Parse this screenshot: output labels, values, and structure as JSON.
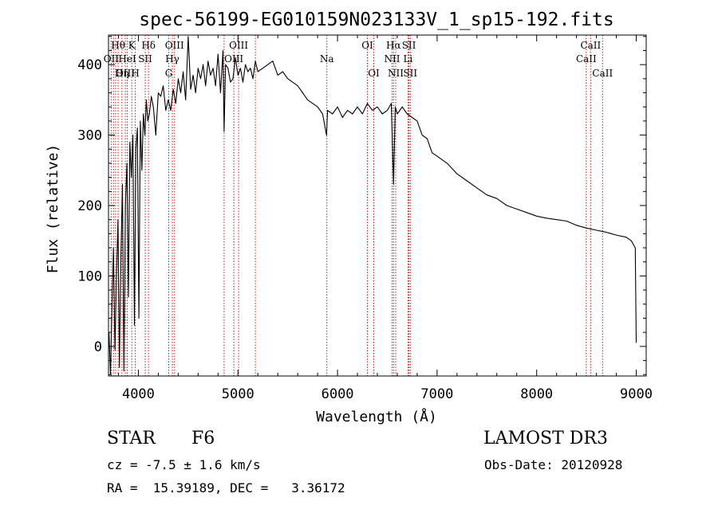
{
  "chart_data": {
    "type": "line",
    "title": "spec-56199-EG010159N023133V_1_sp15-192.fits",
    "xlabel": "Wavelength (Å)",
    "ylabel": "Flux (relative)",
    "xlim": [
      3700,
      9100
    ],
    "ylim": [
      -42,
      442
    ],
    "x_ticks": [
      4000,
      5000,
      6000,
      7000,
      8000,
      9000
    ],
    "y_ticks": [
      0,
      100,
      200,
      300,
      400
    ],
    "grid": false,
    "series": [
      {
        "name": "spectrum",
        "x": [
          3705,
          3720,
          3735,
          3750,
          3765,
          3780,
          3795,
          3810,
          3825,
          3840,
          3855,
          3870,
          3885,
          3900,
          3915,
          3930,
          3945,
          3960,
          3975,
          3990,
          4005,
          4020,
          4035,
          4050,
          4065,
          4080,
          4095,
          4110,
          4130,
          4150,
          4175,
          4200,
          4225,
          4250,
          4275,
          4300,
          4325,
          4350,
          4375,
          4400,
          4425,
          4450,
          4475,
          4500,
          4525,
          4550,
          4575,
          4600,
          4625,
          4650,
          4675,
          4700,
          4725,
          4750,
          4775,
          4800,
          4825,
          4850,
          4861,
          4875,
          4900,
          4925,
          4950,
          4975,
          5000,
          5025,
          5050,
          5075,
          5100,
          5125,
          5150,
          5175,
          5200,
          5250,
          5300,
          5350,
          5400,
          5450,
          5500,
          5550,
          5600,
          5650,
          5700,
          5750,
          5800,
          5850,
          5890,
          5900,
          5950,
          6000,
          6050,
          6100,
          6150,
          6200,
          6250,
          6300,
          6350,
          6400,
          6450,
          6500,
          6540,
          6563,
          6580,
          6600,
          6650,
          6700,
          6750,
          6800,
          6850,
          6900,
          6950,
          7000,
          7100,
          7200,
          7300,
          7400,
          7500,
          7600,
          7700,
          7800,
          7900,
          8000,
          8100,
          8200,
          8300,
          8400,
          8500,
          8600,
          8700,
          8800,
          8900,
          8950,
          8990,
          9000
        ],
        "values": [
          20,
          -40,
          60,
          140,
          -5,
          100,
          180,
          -30,
          130,
          230,
          -35,
          200,
          260,
          70,
          290,
          240,
          300,
          30,
          280,
          310,
          40,
          320,
          250,
          330,
          300,
          350,
          320,
          330,
          355,
          340,
          300,
          360,
          355,
          370,
          335,
          350,
          335,
          365,
          345,
          380,
          360,
          390,
          350,
          440,
          365,
          385,
          360,
          395,
          380,
          400,
          370,
          405,
          385,
          395,
          370,
          415,
          360,
          420,
          305,
          400,
          395,
          375,
          380,
          410,
          385,
          395,
          375,
          400,
          390,
          395,
          380,
          405,
          390,
          395,
          400,
          405,
          385,
          390,
          380,
          375,
          370,
          360,
          350,
          345,
          340,
          330,
          300,
          335,
          330,
          340,
          325,
          335,
          330,
          340,
          330,
          345,
          335,
          340,
          330,
          335,
          345,
          230,
          340,
          330,
          340,
          330,
          325,
          320,
          300,
          295,
          275,
          270,
          260,
          245,
          235,
          225,
          215,
          210,
          200,
          195,
          190,
          185,
          182,
          180,
          178,
          172,
          168,
          165,
          162,
          158,
          155,
          150,
          140,
          5
        ]
      }
    ],
    "annotations": [
      {
        "label": "Hθ",
        "x": 3797,
        "row": 1
      },
      {
        "label": "OII",
        "x": 3727,
        "row": 2
      },
      {
        "label": "OIII",
        "x": 3869,
        "row": 3
      },
      {
        "label": "K",
        "x": 3934,
        "row": 1
      },
      {
        "label": "HeI",
        "x": 3889,
        "row": 2
      },
      {
        "label": "Hη",
        "x": 3835,
        "row": 3
      },
      {
        "label": "SII",
        "x": 4069,
        "row": 2
      },
      {
        "label": "H",
        "x": 3969,
        "row": 3
      },
      {
        "label": "Hδ",
        "x": 4102,
        "row": 1
      },
      {
        "label": "OIII",
        "x": 4363,
        "row": 1
      },
      {
        "label": "Hγ",
        "x": 4341,
        "row": 2
      },
      {
        "label": "G",
        "x": 4305,
        "row": 3
      },
      {
        "label": "OIII",
        "x": 5007,
        "row": 1
      },
      {
        "label": "OIII",
        "x": 4959,
        "row": 2
      },
      {
        "label": "Na",
        "x": 5893,
        "row": 2
      },
      {
        "label": "OI",
        "x": 6300,
        "row": 1
      },
      {
        "label": "OI",
        "x": 6364,
        "row": 3
      },
      {
        "label": "Hα",
        "x": 6563,
        "row": 1
      },
      {
        "label": "SII",
        "x": 6717,
        "row": 1
      },
      {
        "label": "NII",
        "x": 6548,
        "row": 2
      },
      {
        "label": "Li",
        "x": 6708,
        "row": 2
      },
      {
        "label": "NII",
        "x": 6584,
        "row": 3
      },
      {
        "label": "SII",
        "x": 6731,
        "row": 3
      },
      {
        "label": "CaII",
        "x": 8542,
        "row": 1
      },
      {
        "label": "CaII",
        "x": 8498,
        "row": 2
      },
      {
        "label": "CaII",
        "x": 8662,
        "row": 3
      }
    ],
    "line_markers": [
      3727,
      3750,
      3771,
      3797,
      3835,
      3869,
      3889,
      3934,
      3969,
      4069,
      4102,
      4305,
      4341,
      4363,
      4861,
      4959,
      5007,
      5175,
      5893,
      6300,
      6364,
      6548,
      6563,
      6584,
      6708,
      6717,
      6731,
      8498,
      8542,
      8662
    ]
  },
  "info": {
    "class_label": "STAR",
    "subclass": "F6",
    "survey": "LAMOST DR3",
    "cz": "cz = -7.5 ± 1.6 km/s",
    "obs_date": "Obs-Date: 20120928",
    "coords": "RA =  15.39189, DEC =   3.36172"
  },
  "colors": {
    "axis": "#000000",
    "spectrum": "#000000",
    "line_marker": "#c01818"
  }
}
